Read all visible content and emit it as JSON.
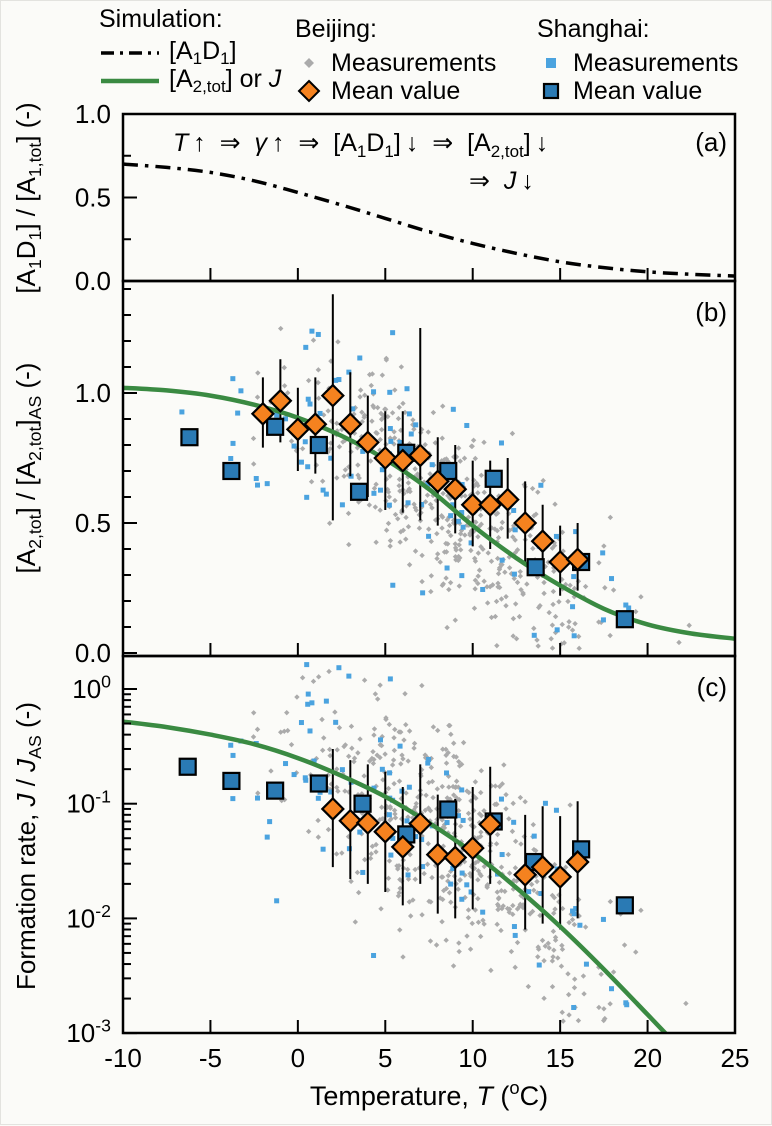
{
  "colors": {
    "green": "#3A8A42",
    "orange": "#F5821F",
    "gray_measurement": "#ABABAB",
    "lightblue_measurement": "#4BA3DF",
    "blue_mean": "#2A7AB4",
    "black": "#000000"
  },
  "legend": {
    "simulation": {
      "title": "Simulation:",
      "items": [
        {
          "marker": "dashdot-line",
          "label_rich": [
            [
              "[A",
              ""
            ],
            [
              "1",
              "sub"
            ],
            [
              "D",
              ""
            ],
            [
              "1",
              "sub"
            ],
            [
              "]",
              ""
            ]
          ]
        },
        {
          "marker": "green-line",
          "label_rich": [
            [
              "[A",
              ""
            ],
            [
              "2,tot",
              "sub"
            ],
            [
              "] or ",
              ""
            ],
            [
              "J",
              "i"
            ]
          ]
        }
      ]
    },
    "beijing": {
      "title": "Beijing:",
      "items": [
        {
          "marker": "gray-diamond-small",
          "label": "Measurements"
        },
        {
          "marker": "orange-diamond",
          "label": "Mean value"
        }
      ]
    },
    "shanghai": {
      "title": "Shanghai:",
      "items": [
        {
          "marker": "lightblue-square-small",
          "label": "Measurements"
        },
        {
          "marker": "blue-square",
          "label": "Mean value"
        }
      ]
    }
  },
  "annotation": {
    "line1_rich": [
      [
        "T",
        "i"
      ],
      [
        " ↑  ⇒  ",
        ""
      ],
      [
        "γ",
        "i"
      ],
      [
        " ↑  ⇒  [A",
        ""
      ],
      [
        "1",
        "sub"
      ],
      [
        "D",
        ""
      ],
      [
        "1",
        "sub"
      ],
      [
        "] ↓  ⇒  [A",
        ""
      ],
      [
        "2,tot",
        "sub"
      ],
      [
        "] ↓",
        ""
      ]
    ],
    "line2_rich": [
      [
        "⇒  ",
        ""
      ],
      [
        "J",
        "i"
      ],
      [
        " ↓",
        ""
      ]
    ]
  },
  "x_axis": {
    "title_rich": [
      [
        "Temperature, ",
        ""
      ],
      [
        "T",
        "i"
      ],
      [
        " (",
        ""
      ],
      [
        "o",
        "sup"
      ],
      [
        "C)",
        ""
      ]
    ],
    "range": [
      -10,
      25
    ],
    "ticks": [
      -10,
      -5,
      0,
      5,
      10,
      15,
      20,
      25
    ]
  },
  "measurement_scatter": {
    "beijing": {
      "seed": 20,
      "count": 520,
      "t_mean": 8.3,
      "t_sd": 4.4,
      "t_min": -2.8,
      "t_max": 22.4,
      "b_noise_sd": 0.17,
      "c_lognoise_sd": 0.45
    },
    "shanghai": {
      "seed": 77,
      "count": 100,
      "t_mean": 6.0,
      "t_sd": 7.0,
      "t_min": -7.6,
      "t_max": 19.6,
      "b_noise_sd": 0.21,
      "c_lognoise_sd": 0.5
    }
  },
  "chart_data": [
    {
      "id": "a",
      "type": "line",
      "panel_label": "(a)",
      "yscale": "linear",
      "ylim": [
        0.0,
        1.0
      ],
      "yticks": [
        {
          "v": 1.0,
          "label": "1.0"
        },
        {
          "v": 0.5,
          "label": "0.5"
        },
        {
          "v": 0.0,
          "label": "0.0"
        }
      ],
      "yminor": [
        0.75,
        0.25
      ],
      "ylabel_rich": [
        [
          "[A",
          ""
        ],
        [
          "1",
          "sub"
        ],
        [
          "D",
          ""
        ],
        [
          "1",
          "sub"
        ],
        [
          "] / [A",
          ""
        ],
        [
          "1,tot",
          "sub"
        ],
        [
          "] (-)",
          ""
        ]
      ],
      "series": [
        {
          "name": "simulation-A1D1",
          "style": "dashdot",
          "x": [
            -10,
            -7.5,
            -5,
            -2.5,
            0,
            2.5,
            5,
            7.5,
            10,
            12.5,
            15,
            17.5,
            20,
            22.5,
            25
          ],
          "y": [
            0.7,
            0.68,
            0.65,
            0.6,
            0.53,
            0.455,
            0.375,
            0.295,
            0.225,
            0.165,
            0.115,
            0.08,
            0.055,
            0.04,
            0.03
          ]
        }
      ]
    },
    {
      "id": "b",
      "type": "scatter",
      "panel_label": "(b)",
      "yscale": "linear",
      "ylim": [
        0.0,
        1.43
      ],
      "yticks": [
        {
          "v": 1.0,
          "label": "1.0"
        },
        {
          "v": 0.5,
          "label": "0.5"
        },
        {
          "v": 0.0,
          "label": "0.0"
        }
      ],
      "yminor": [
        1.4,
        1.3,
        1.2,
        1.1,
        0.9,
        0.8,
        0.7,
        0.6,
        0.4,
        0.3,
        0.2,
        0.1
      ],
      "ylabel_rich": [
        [
          "[A",
          ""
        ],
        [
          "2,tot",
          "sub"
        ],
        [
          "] / [A",
          ""
        ],
        [
          "2,tot",
          "sub"
        ],
        [
          "]",
          ""
        ],
        [
          "AS",
          "sub"
        ],
        [
          " (-)",
          ""
        ]
      ],
      "series": [
        {
          "name": "simulation-A2tot",
          "style": "green-line",
          "x": [
            -10,
            -7.5,
            -5,
            -2.5,
            0,
            2.5,
            5,
            7.5,
            10,
            12.5,
            15,
            17.5,
            20,
            22.5,
            25
          ],
          "y": [
            1.02,
            1.01,
            0.99,
            0.955,
            0.905,
            0.835,
            0.745,
            0.63,
            0.49,
            0.365,
            0.26,
            0.17,
            0.11,
            0.075,
            0.055
          ]
        },
        {
          "name": "beijing-mean",
          "style": "orange-diamond",
          "x": [
            -2,
            -1,
            0,
            1,
            2,
            3,
            4,
            5,
            6,
            7,
            8,
            9,
            10,
            11,
            12,
            13,
            14,
            15,
            16
          ],
          "y": [
            0.92,
            0.97,
            0.86,
            0.88,
            0.99,
            0.88,
            0.81,
            0.75,
            0.74,
            0.76,
            0.66,
            0.63,
            0.57,
            0.57,
            0.59,
            0.5,
            0.43,
            0.35,
            0.36
          ],
          "err_lo": [
            0.79,
            0.81,
            0.7,
            0.69,
            0.51,
            0.68,
            0.6,
            0.55,
            0.54,
            0.51,
            0.49,
            0.46,
            0.41,
            0.4,
            0.44,
            0.35,
            0.29,
            0.22,
            0.24
          ],
          "err_hi": [
            1.06,
            1.13,
            1.02,
            1.06,
            1.38,
            1.08,
            0.99,
            0.93,
            0.93,
            1.25,
            0.83,
            0.8,
            0.74,
            0.74,
            0.75,
            0.66,
            0.57,
            0.49,
            0.5
          ]
        },
        {
          "name": "shanghai-mean",
          "style": "blue-square",
          "x": [
            -6.2,
            -3.8,
            -1.3,
            1.2,
            3.5,
            6.2,
            8.6,
            11.2,
            13.6,
            16.2,
            18.7
          ],
          "y": [
            0.83,
            0.7,
            0.87,
            0.8,
            0.62,
            0.77,
            0.7,
            0.67,
            0.33,
            0.35,
            0.13
          ]
        }
      ]
    },
    {
      "id": "c",
      "type": "scatter",
      "panel_label": "(c)",
      "yscale": "log",
      "ylim": [
        0.001,
        1.94
      ],
      "yticks": [
        {
          "exp": "0"
        },
        {
          "exp": "-1"
        },
        {
          "exp": "-2"
        },
        {
          "exp": "-3"
        }
      ],
      "ylabel_rich": [
        [
          "Formation rate, ",
          ""
        ],
        [
          "J",
          "i"
        ],
        [
          " / ",
          ""
        ],
        [
          "J",
          "i"
        ],
        [
          "AS",
          "sub"
        ],
        [
          " (-)",
          ""
        ]
      ],
      "series": [
        {
          "name": "simulation-J",
          "style": "green-line",
          "x": [
            -10,
            -7.5,
            -5,
            -2.5,
            0,
            2.5,
            5,
            7.5,
            10,
            12.5,
            15,
            17.5,
            20,
            22.5,
            25
          ],
          "y": [
            0.52,
            0.465,
            0.4,
            0.33,
            0.25,
            0.175,
            0.115,
            0.068,
            0.0375,
            0.0185,
            0.0085,
            0.0036,
            0.00145,
            0.00058,
            0.00024
          ]
        },
        {
          "name": "beijing-mean",
          "style": "orange-diamond",
          "x": [
            2,
            3,
            4,
            5,
            6,
            7,
            8,
            9,
            10,
            11,
            13,
            14,
            15,
            16
          ],
          "y": [
            0.09,
            0.071,
            0.068,
            0.057,
            0.042,
            0.067,
            0.036,
            0.034,
            0.041,
            0.066,
            0.024,
            0.028,
            0.023,
            0.031
          ],
          "err_lo": [
            0.028,
            0.022,
            0.02,
            0.017,
            0.013,
            0.02,
            0.011,
            0.01,
            0.012,
            0.02,
            0.008,
            0.009,
            0.008,
            0.01
          ],
          "err_hi": [
            0.3,
            0.24,
            0.22,
            0.19,
            0.14,
            0.22,
            0.12,
            0.11,
            0.14,
            0.21,
            0.08,
            0.095,
            0.078,
            0.105
          ]
        },
        {
          "name": "shanghai-mean",
          "style": "blue-square",
          "x": [
            -6.3,
            -3.8,
            -1.3,
            1.2,
            3.7,
            6.2,
            8.6,
            11.2,
            13.5,
            16.2,
            18.7
          ],
          "y": [
            0.21,
            0.158,
            0.13,
            0.15,
            0.1,
            0.054,
            0.089,
            0.07,
            0.031,
            0.04,
            0.013
          ]
        }
      ]
    }
  ]
}
